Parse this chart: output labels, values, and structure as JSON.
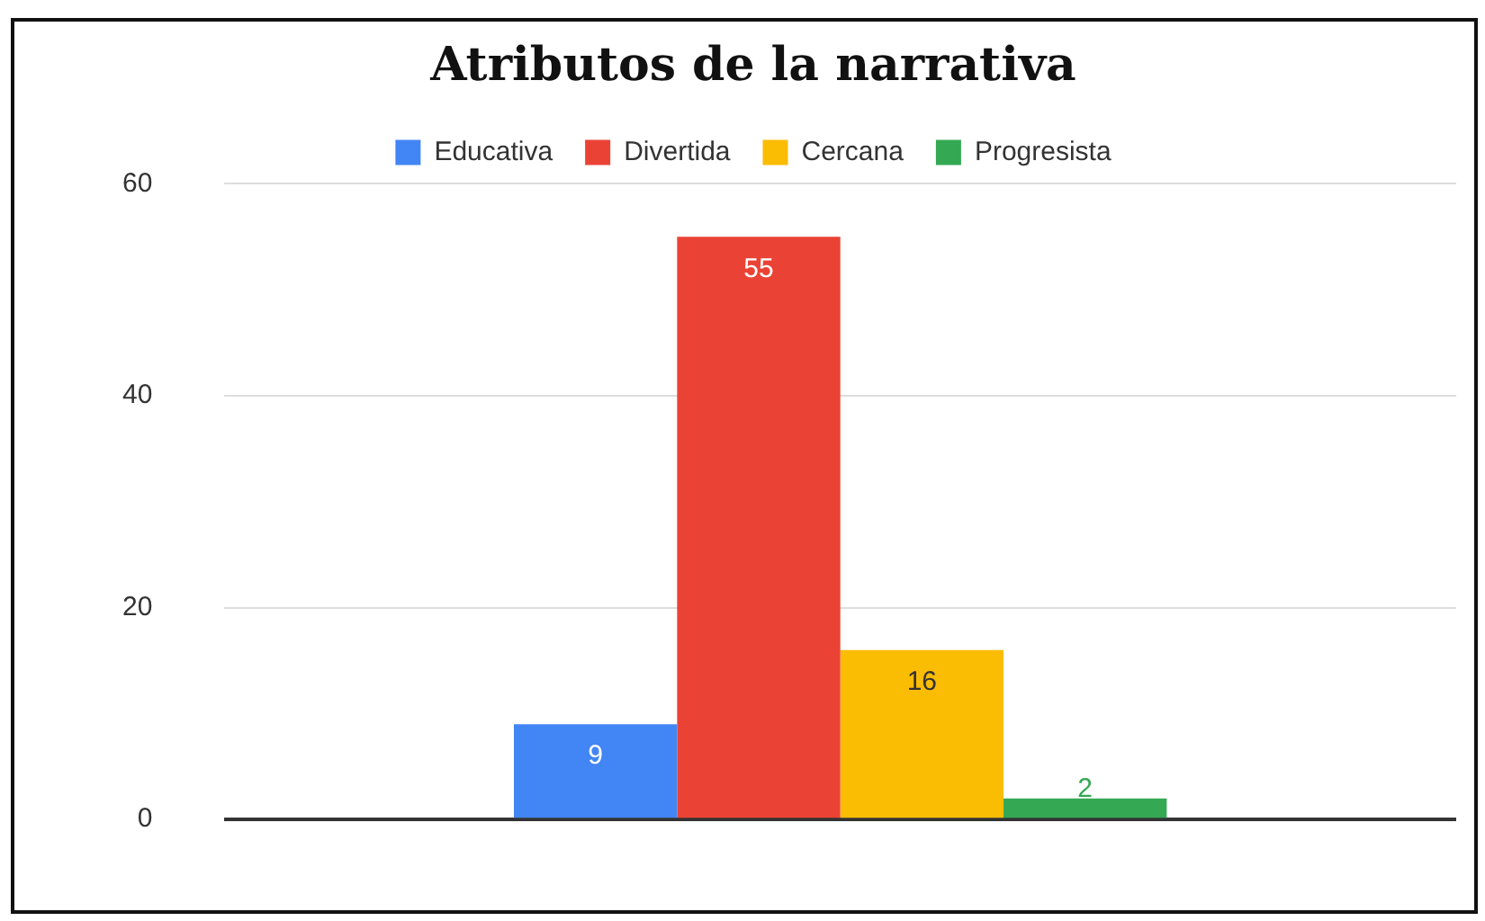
{
  "chart_data": {
    "type": "bar",
    "title": "Atributos de la narrativa",
    "categories": [
      null
    ],
    "series": [
      {
        "name": "Educativa",
        "color": "#4285f4",
        "values": [
          9
        ]
      },
      {
        "name": "Divertida",
        "color": "#ea4335",
        "values": [
          55
        ]
      },
      {
        "name": "Cercana",
        "color": "#fbbc04",
        "values": [
          16
        ]
      },
      {
        "name": "Progresista",
        "color": "#34a853",
        "values": [
          2
        ]
      }
    ],
    "ylim": [
      0,
      60
    ],
    "yticks": [
      0,
      20,
      40,
      60
    ],
    "grid": "y",
    "legend": "top",
    "data_labels": true
  }
}
